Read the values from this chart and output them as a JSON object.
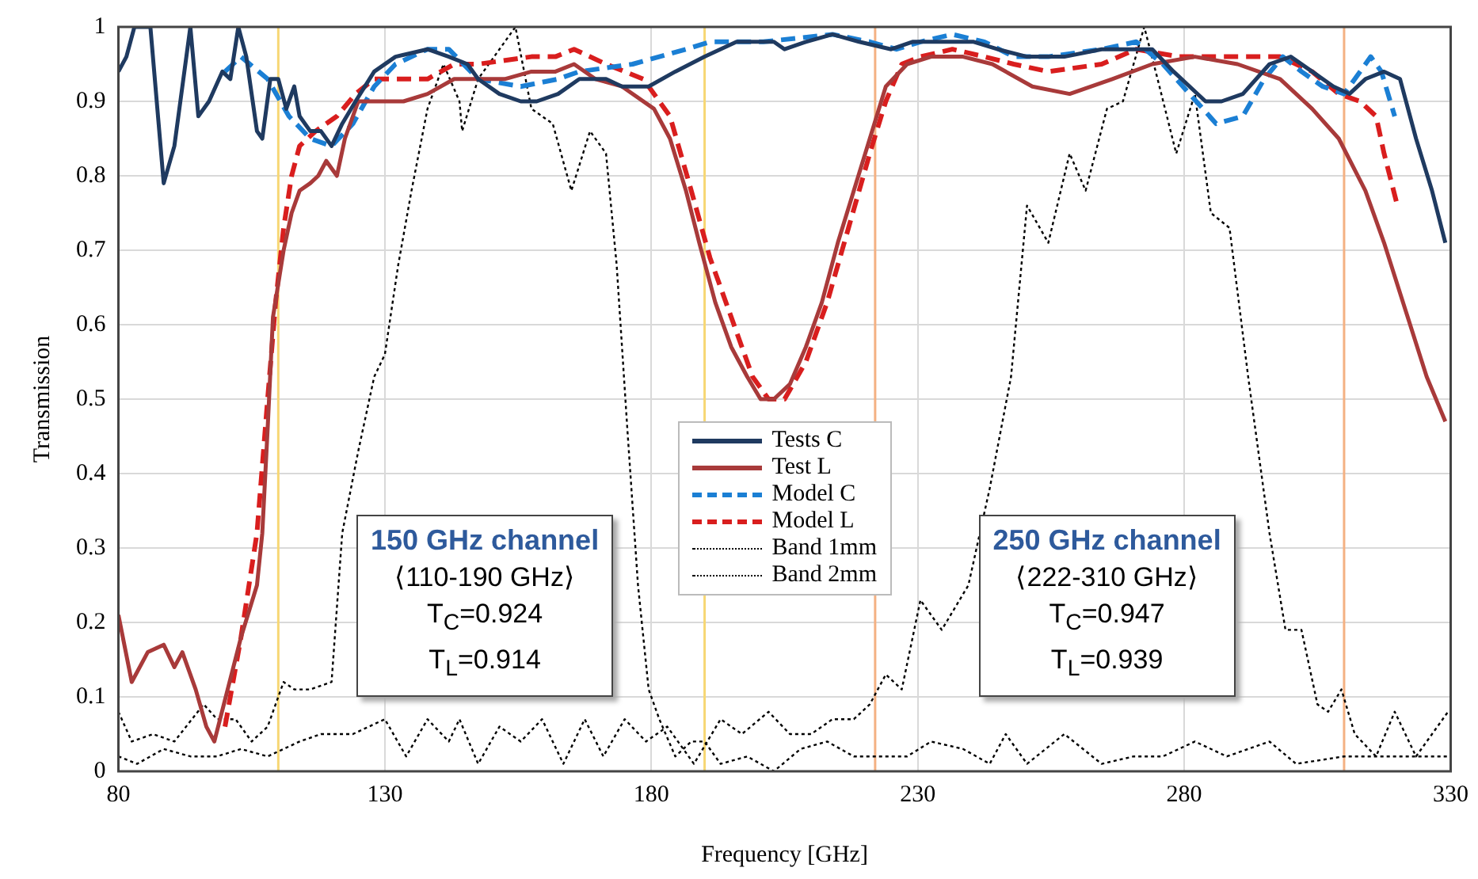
{
  "chart_data": {
    "type": "line",
    "xlabel": "Frequency [GHz]",
    "ylabel": "Transmission",
    "xlim": [
      80,
      330
    ],
    "xticks": [
      80,
      130,
      180,
      230,
      280,
      330
    ],
    "ylim": [
      0,
      1
    ],
    "yticks": [
      0,
      0.1,
      0.2,
      0.3,
      0.4,
      0.5,
      0.6,
      0.7,
      0.8,
      0.9,
      1
    ],
    "grid": true,
    "legend": "center",
    "series": [
      {
        "name": "Tests C",
        "color": "#1f3a60",
        "line_style": "solid",
        "x": [
          80,
          81.5,
          83,
          86,
          88.5,
          90.5,
          93.5,
          95,
          97,
          99.5,
          101,
          102.5,
          104,
          106,
          107,
          108.5,
          110,
          111.5,
          113,
          114,
          116,
          118,
          120,
          122,
          124.5,
          128,
          132,
          138,
          142,
          145.5,
          147.5,
          151.5,
          155.5,
          158.5,
          162.5,
          166.5,
          171.5,
          174.5,
          179.5,
          184.5,
          190,
          196,
          203,
          205,
          209,
          214,
          219,
          225,
          229,
          233,
          237,
          240.5,
          245,
          250.5,
          257.5,
          264.5,
          270.5,
          274,
          278,
          284,
          287,
          291,
          296,
          300,
          304,
          308,
          311,
          314,
          317.5,
          320.5,
          323.5,
          326.5,
          329
        ],
        "values": [
          0.94,
          0.96,
          1.0,
          1.0,
          0.79,
          0.84,
          1.0,
          0.88,
          0.9,
          0.94,
          0.93,
          1.0,
          0.96,
          0.86,
          0.85,
          0.93,
          0.93,
          0.89,
          0.92,
          0.88,
          0.86,
          0.86,
          0.84,
          0.87,
          0.9,
          0.94,
          0.96,
          0.97,
          0.96,
          0.95,
          0.93,
          0.91,
          0.9,
          0.9,
          0.91,
          0.93,
          0.93,
          0.92,
          0.92,
          0.94,
          0.96,
          0.98,
          0.98,
          0.97,
          0.98,
          0.99,
          0.98,
          0.97,
          0.98,
          0.98,
          0.98,
          0.98,
          0.97,
          0.96,
          0.96,
          0.97,
          0.97,
          0.97,
          0.94,
          0.9,
          0.9,
          0.91,
          0.95,
          0.96,
          0.94,
          0.92,
          0.91,
          0.93,
          0.94,
          0.93,
          0.85,
          0.78,
          0.71
        ]
      },
      {
        "name": "Test L",
        "color": "#a83a3a",
        "line_style": "solid",
        "x": [
          80,
          82.5,
          85.5,
          88.5,
          90.5,
          92,
          94.5,
          96.5,
          98,
          100.5,
          103,
          106,
          107,
          108,
          109,
          111,
          112.5,
          114,
          116,
          117.5,
          119,
          121,
          122.5,
          125,
          129,
          132,
          133.5,
          138,
          143,
          147.5,
          152.5,
          157.5,
          162,
          165.5,
          169.5,
          174.5,
          180.5,
          183.5,
          186.5,
          189,
          192,
          195,
          198,
          200.5,
          203,
          206,
          209,
          212,
          215,
          218,
          221,
          224,
          228,
          232.5,
          238.5,
          244,
          251.5,
          258.5,
          266.5,
          274,
          282,
          290,
          298,
          304,
          309,
          314,
          317.5,
          321.5,
          325.5,
          329
        ],
        "values": [
          0.21,
          0.12,
          0.16,
          0.17,
          0.14,
          0.16,
          0.11,
          0.06,
          0.04,
          0.11,
          0.18,
          0.25,
          0.32,
          0.46,
          0.61,
          0.7,
          0.75,
          0.78,
          0.79,
          0.8,
          0.82,
          0.8,
          0.85,
          0.9,
          0.9,
          0.9,
          0.9,
          0.91,
          0.93,
          0.93,
          0.93,
          0.94,
          0.94,
          0.95,
          0.93,
          0.92,
          0.89,
          0.85,
          0.78,
          0.71,
          0.63,
          0.57,
          0.53,
          0.5,
          0.5,
          0.52,
          0.57,
          0.63,
          0.71,
          0.78,
          0.85,
          0.92,
          0.95,
          0.96,
          0.96,
          0.95,
          0.92,
          0.91,
          0.93,
          0.95,
          0.96,
          0.95,
          0.93,
          0.89,
          0.85,
          0.78,
          0.71,
          0.62,
          0.53,
          0.47
        ]
      },
      {
        "name": "Model C",
        "color": "#1b7fd4",
        "line_style": "dashed",
        "x": [
          100,
          103,
          108,
          112,
          116,
          120,
          124,
          128,
          132,
          138,
          142,
          147.5,
          155.5,
          162.5,
          166.5,
          176.5,
          186.5,
          191,
          201,
          214,
          221,
          226,
          230.5,
          236.5,
          242.5,
          248,
          254.5,
          264.5,
          271,
          276,
          281,
          286,
          291,
          295,
          298.5,
          302,
          306,
          310,
          313,
          315,
          317,
          319.5
        ],
        "values": [
          0.94,
          0.96,
          0.93,
          0.88,
          0.85,
          0.84,
          0.87,
          0.92,
          0.95,
          0.97,
          0.97,
          0.93,
          0.92,
          0.93,
          0.94,
          0.95,
          0.97,
          0.98,
          0.98,
          0.99,
          0.98,
          0.97,
          0.98,
          0.99,
          0.98,
          0.96,
          0.96,
          0.97,
          0.98,
          0.95,
          0.91,
          0.87,
          0.88,
          0.93,
          0.96,
          0.94,
          0.92,
          0.91,
          0.94,
          0.96,
          0.94,
          0.88
        ]
      },
      {
        "name": "Model L",
        "color": "#d91e1e",
        "line_style": "dashed",
        "x": [
          100,
          103,
          106,
          108,
          109.5,
          111,
          112.5,
          114,
          117,
          121,
          124.5,
          128,
          132,
          138,
          143,
          147.5,
          157.5,
          162,
          165.5,
          171.5,
          178.5,
          183.5,
          187.5,
          191,
          195,
          199,
          202,
          205,
          209,
          213,
          217,
          221,
          224,
          227,
          230.5,
          236.5,
          242.5,
          248,
          254.5,
          264.5,
          271,
          279,
          289,
          298,
          304,
          309,
          313,
          316,
          317.5,
          320
        ],
        "values": [
          0.06,
          0.18,
          0.32,
          0.5,
          0.63,
          0.73,
          0.8,
          0.84,
          0.86,
          0.88,
          0.91,
          0.93,
          0.93,
          0.93,
          0.95,
          0.95,
          0.96,
          0.96,
          0.97,
          0.95,
          0.93,
          0.88,
          0.78,
          0.69,
          0.61,
          0.53,
          0.5,
          0.5,
          0.55,
          0.63,
          0.73,
          0.83,
          0.9,
          0.95,
          0.96,
          0.97,
          0.96,
          0.95,
          0.94,
          0.95,
          0.97,
          0.96,
          0.96,
          0.96,
          0.94,
          0.91,
          0.9,
          0.88,
          0.83,
          0.76
        ]
      },
      {
        "name": "Band 1mm",
        "color": "#000000",
        "line_style": "dotted",
        "x": [
          80,
          83.5,
          88.5,
          93.5,
          98.5,
          103,
          108,
          114,
          118,
          124,
          130,
          134,
          138,
          142,
          144,
          147.5,
          151.5,
          155.5,
          159.5,
          163.5,
          167.5,
          171,
          175,
          179,
          183,
          188,
          193,
          197,
          202,
          206,
          210,
          214,
          218,
          221,
          224,
          227,
          230.5,
          234.5,
          239.5,
          243.5,
          247.5,
          250.5,
          254.5,
          258.5,
          261.5,
          265.5,
          268.5,
          272.5,
          275,
          278.5,
          282,
          285,
          288.5,
          292,
          296,
          299,
          302,
          305,
          307,
          309.5,
          312,
          316,
          319.5,
          323.5,
          329.5
        ],
        "values": [
          0.02,
          0.01,
          0.03,
          0.02,
          0.02,
          0.03,
          0.02,
          0.04,
          0.05,
          0.05,
          0.07,
          0.02,
          0.07,
          0.04,
          0.07,
          0.01,
          0.06,
          0.04,
          0.07,
          0.01,
          0.07,
          0.02,
          0.07,
          0.04,
          0.06,
          0.01,
          0.07,
          0.05,
          0.08,
          0.05,
          0.05,
          0.07,
          0.07,
          0.09,
          0.13,
          0.11,
          0.23,
          0.19,
          0.25,
          0.38,
          0.53,
          0.76,
          0.71,
          0.83,
          0.78,
          0.89,
          0.9,
          1.0,
          0.93,
          0.83,
          0.91,
          0.75,
          0.73,
          0.53,
          0.32,
          0.19,
          0.19,
          0.09,
          0.08,
          0.11,
          0.05,
          0.02,
          0.08,
          0.02,
          0.08
        ]
      },
      {
        "name": "Band 2mm",
        "color": "#000000",
        "line_style": "dotted",
        "x": [
          80,
          82.5,
          86.5,
          90.5,
          96,
          98.5,
          102,
          105,
          108,
          111,
          113,
          116,
          120,
          122,
          125,
          128,
          130,
          132.5,
          135,
          138,
          141,
          144,
          144.5,
          147.5,
          151.5,
          154.5,
          157.5,
          161.5,
          165,
          168.5,
          171.5,
          173.5,
          175.5,
          177.5,
          179.5,
          181.5,
          184.5,
          187.5,
          190,
          193,
          198,
          203,
          208,
          213,
          218,
          223,
          228,
          232.5,
          238.5,
          243.5,
          246.5,
          250.5,
          257.5,
          264.5,
          270.5,
          276,
          282,
          288,
          296,
          301,
          310,
          316,
          323.5,
          329.5
        ],
        "values": [
          0.08,
          0.04,
          0.05,
          0.04,
          0.09,
          0.07,
          0.07,
          0.04,
          0.06,
          0.12,
          0.11,
          0.11,
          0.12,
          0.32,
          0.43,
          0.53,
          0.56,
          0.68,
          0.78,
          0.89,
          0.95,
          0.9,
          0.86,
          0.93,
          0.97,
          1.0,
          0.89,
          0.87,
          0.78,
          0.86,
          0.83,
          0.68,
          0.46,
          0.25,
          0.11,
          0.07,
          0.02,
          0.04,
          0.04,
          0.01,
          0.02,
          0,
          0.03,
          0.04,
          0.02,
          0.02,
          0.02,
          0.04,
          0.03,
          0.01,
          0.05,
          0.01,
          0.05,
          0.01,
          0.02,
          0.02,
          0.04,
          0.02,
          0.04,
          0.01,
          0.02,
          0.02,
          0.02,
          0.02
        ]
      }
    ],
    "ref_lines": [
      {
        "axis": "x",
        "value": 110,
        "color": "#f7d774"
      },
      {
        "axis": "x",
        "value": 190,
        "color": "#f7d774"
      },
      {
        "axis": "x",
        "value": 222,
        "color": "#f4b183"
      },
      {
        "axis": "x",
        "value": 310,
        "color": "#f4b183"
      }
    ],
    "annotations": [
      "150 GHz channel\n⟨110-190 GHz⟩\nT$_{C}$=0.924\nT$_{L}$=0.914",
      "250 GHz channel\n⟨222-310 GHz⟩\nT$_{C}$=0.947\nT$_{L}$=0.939"
    ]
  }
}
